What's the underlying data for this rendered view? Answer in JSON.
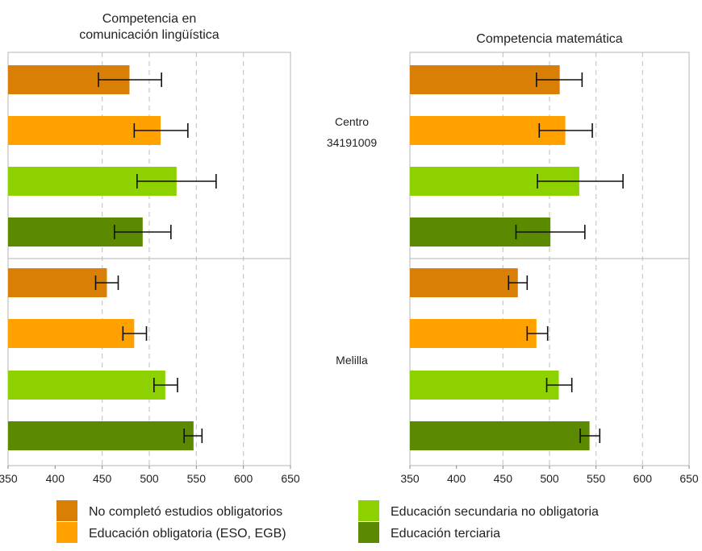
{
  "chart_data": {
    "type": "bar",
    "orientation": "horizontal",
    "panel_titles": [
      [
        "Competencia en",
        "comunicación lingüística"
      ],
      [
        "Competencia matemática"
      ]
    ],
    "group_labels": [
      [
        "Centro",
        "34191009"
      ],
      [
        "Melilla"
      ]
    ],
    "xlim": [
      350,
      650
    ],
    "xticks": [
      350,
      400,
      450,
      500,
      550,
      600,
      650
    ],
    "grid": "vertical dashed at 450, 500, 550, 600",
    "legend_position": "bottom",
    "series": [
      {
        "name": "No completó estudios obligatorios",
        "color": "#d97f05"
      },
      {
        "name": "Educación obligatoria (ESO, EGB)",
        "color": "#ffa200"
      },
      {
        "name": "Educación secundaria no obligatoria",
        "color": "#8ed100"
      },
      {
        "name": "Educación terciaria",
        "color": "#5b8a00"
      }
    ],
    "panels": [
      {
        "groups": [
          {
            "values": [
              479,
              512,
              529,
              493
            ],
            "error_low": [
              446,
              484,
              487,
              463
            ],
            "error_high": [
              513,
              541,
              571,
              523
            ]
          },
          {
            "values": [
              455,
              484,
              517,
              547
            ],
            "error_low": [
              443,
              472,
              505,
              537
            ],
            "error_high": [
              467,
              497,
              530,
              556
            ]
          }
        ]
      },
      {
        "groups": [
          {
            "values": [
              511,
              517,
              532,
              501
            ],
            "error_low": [
              486,
              489,
              487,
              464
            ],
            "error_high": [
              535,
              546,
              579,
              538
            ]
          },
          {
            "values": [
              466,
              486,
              510,
              543
            ],
            "error_low": [
              456,
              476,
              497,
              533
            ],
            "error_high": [
              476,
              498,
              524,
              554
            ]
          }
        ]
      }
    ]
  }
}
